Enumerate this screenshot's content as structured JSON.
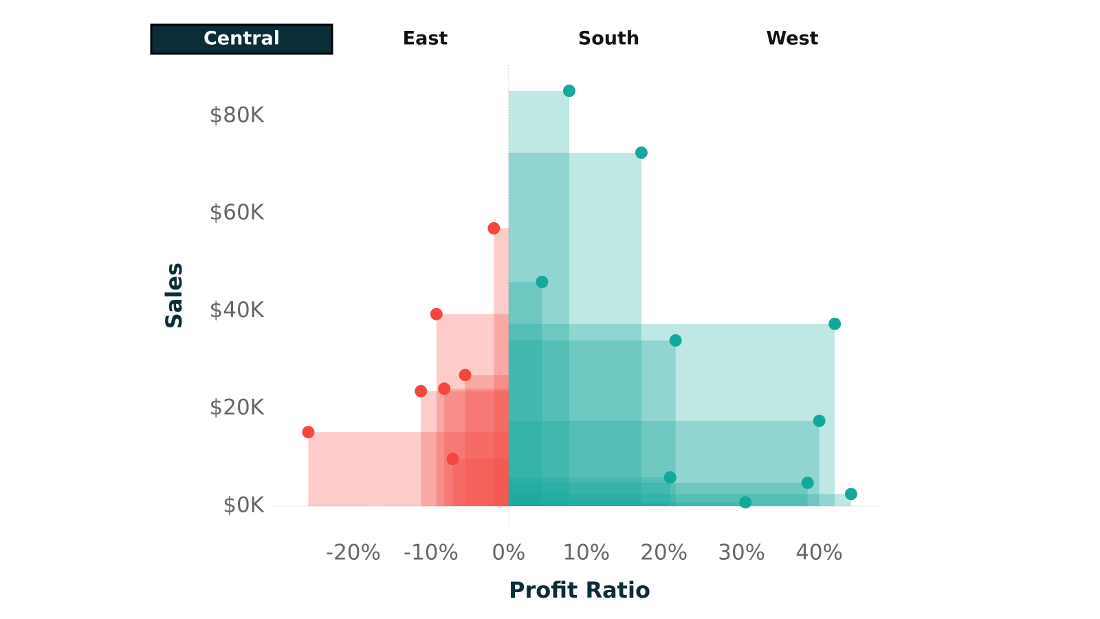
{
  "chart_data": {
    "type": "scatter",
    "tabs": [
      "Central",
      "East",
      "South",
      "West"
    ],
    "selected_tab": 0,
    "xlabel": "Profit Ratio",
    "ylabel": "Sales",
    "x": [
      -25.8,
      -11.3,
      -9.3,
      -8.3,
      -7.2,
      -5.6,
      -1.9,
      7.8,
      17.1,
      4.3,
      21.5,
      42.0,
      40.0,
      20.8,
      38.5,
      44.1,
      30.5
    ],
    "values": [
      15200,
      23600,
      39400,
      24100,
      9700,
      26900,
      57000,
      85200,
      72500,
      46000,
      34000,
      37400,
      17500,
      5900,
      4800,
      2500,
      800
    ],
    "positive_color": "#14a89a",
    "negative_color": "#f5473d",
    "xlim": [
      -30,
      48
    ],
    "ylim": [
      0,
      90000
    ],
    "xticks": [
      {
        "value": -20,
        "label": "-20%"
      },
      {
        "value": -10,
        "label": "-10%"
      },
      {
        "value": 0,
        "label": "0%"
      },
      {
        "value": 10,
        "label": "10%"
      },
      {
        "value": 20,
        "label": "20%"
      },
      {
        "value": 30,
        "label": "30%"
      },
      {
        "value": 40,
        "label": "40%"
      }
    ],
    "yticks": [
      {
        "value": 0,
        "label": "$0K"
      },
      {
        "value": 20000,
        "label": "$20K"
      },
      {
        "value": 40000,
        "label": "$40K"
      },
      {
        "value": 60000,
        "label": "$60K"
      },
      {
        "value": 80000,
        "label": "$80K"
      }
    ]
  }
}
